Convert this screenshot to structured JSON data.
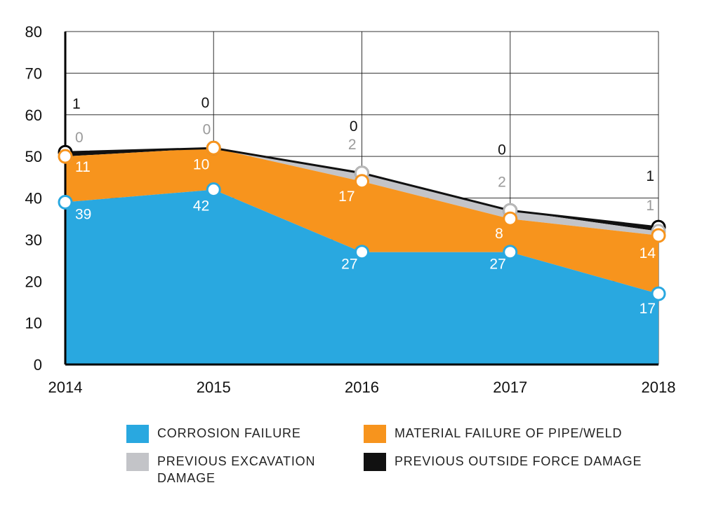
{
  "chart_data": {
    "type": "area",
    "stacked": true,
    "x": [
      "2014",
      "2015",
      "2016",
      "2017",
      "2018"
    ],
    "ylim": [
      0,
      80
    ],
    "yticks": [
      "0",
      "10",
      "20",
      "30",
      "40",
      "50",
      "60",
      "70",
      "80"
    ],
    "grid": true,
    "legend_position": "bottom",
    "series": [
      {
        "name": "CORROSION FAILURE",
        "values": [
          39,
          42,
          27,
          27,
          17
        ],
        "color": "#29a8e0",
        "label_color": "#ffffff"
      },
      {
        "name": "MATERIAL FAILURE OF PIPE/WELD",
        "values": [
          11,
          10,
          17,
          8,
          14
        ],
        "color": "#f7941d",
        "label_color": "#ffffff"
      },
      {
        "name": "PREVIOUS EXCAVATION DAMAGE",
        "values": [
          0,
          0,
          2,
          2,
          1
        ],
        "color": "#c3c4c8",
        "label_color": "#9a9a9a"
      },
      {
        "name": "PREVIOUS OUTSIDE FORCE DAMAGE",
        "values": [
          1,
          0,
          0,
          0,
          1
        ],
        "color": "#111111",
        "label_color": "#111111"
      }
    ]
  },
  "legend": [
    {
      "label": "CORROSION FAILURE",
      "color": "#29a8e0"
    },
    {
      "label": "MATERIAL FAILURE OF PIPE/WELD",
      "color": "#f7941d"
    },
    {
      "label": "PREVIOUS EXCAVATION DAMAGE",
      "color": "#c3c4c8"
    },
    {
      "label": "PREVIOUS OUTSIDE FORCE DAMAGE",
      "color": "#111111"
    }
  ]
}
